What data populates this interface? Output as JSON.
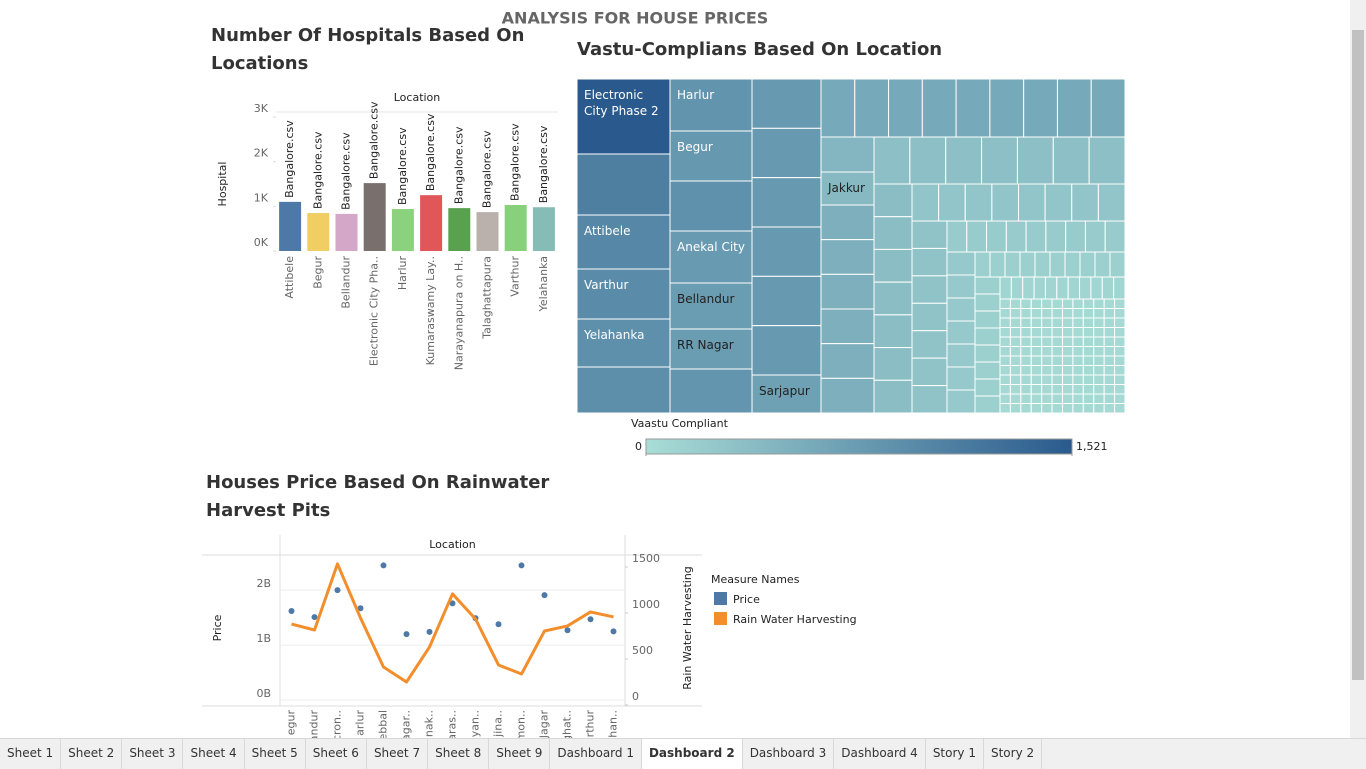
{
  "dashboard_title": "ANALYSIS FOR HOUSE PRICES",
  "chart_data": [
    {
      "type": "bar",
      "title": "Number Of Hospitals Based On Locations",
      "x_label": "Location",
      "y_label": "Hospital",
      "categories": [
        "Attibele",
        "Begur",
        "Bellandur",
        "Electronic City Pha..",
        "Harlur",
        "Kumaraswamy Lay..",
        "Narayanapura on H..",
        "Talaghattapura",
        "Varthur",
        "Yelahanka"
      ],
      "values": [
        1100,
        850,
        830,
        1520,
        940,
        1250,
        960,
        870,
        1030,
        980
      ],
      "bar_labels": [
        "Bangalore.csv",
        "Bangalore.csv",
        "Bangalore.csv",
        "Bangalore.csv",
        "Bangalore.csv",
        "Bangalore.csv",
        "Bangalore.csv",
        "Bangalore.csv",
        "Bangalore.csv",
        "Bangalore.csv"
      ],
      "colors": [
        "#4e79a7",
        "#f1ce63",
        "#d4a6c8",
        "#79706e",
        "#8cd17d",
        "#e15759",
        "#59a14f",
        "#bab0ac",
        "#86d17a",
        "#86bcb6"
      ],
      "ylim": [
        0,
        3000
      ],
      "yticks": [
        {
          "value": 0,
          "label": "0K"
        },
        {
          "value": 1000,
          "label": "1K"
        },
        {
          "value": 2000,
          "label": "2K"
        },
        {
          "value": 3000,
          "label": "3K"
        }
      ]
    },
    {
      "type": "treemap",
      "title": "Vastu-Complians Based On Location",
      "categories": [
        "Electronic City Phase 2",
        "Attibele",
        "Varthur",
        "Yelahanka",
        "Harlur",
        "Begur",
        "Anekal City",
        "Bellandur",
        "RR Nagar",
        "Sarjapur",
        "Jakkur"
      ],
      "values": [
        1521,
        1000,
        950,
        900,
        850,
        800,
        780,
        760,
        740,
        700,
        420
      ],
      "color_label": "Vaastu Compliant",
      "color_range": [
        "#a9ddd6",
        "#2a5a8d"
      ],
      "clim": [
        0,
        1521
      ],
      "cticks": [
        0,
        {
          "value": 1521,
          "label": "1,521"
        }
      ]
    },
    {
      "type": "line",
      "title": "Houses Price Based On Rainwater Harvest Pits",
      "x_label": "Location",
      "y_label": "Price",
      "y2_label": "Rain Water Harvesting",
      "legend_title": "Measure Names",
      "categories": [
        "egur",
        "andur",
        "cron..",
        "arlur",
        "ebbal",
        "agar..",
        "nak..",
        "aras..",
        "yan..",
        "jina..",
        "mon..",
        "Jagar",
        "ghat..",
        "rthur",
        "han.."
      ],
      "series": [
        {
          "name": "Price",
          "color": "#4e79a7",
          "style": "dots",
          "values": [
            1620000000,
            1510000000,
            2000000000,
            1670000000,
            2450000000,
            1200000000,
            1240000000,
            1760000000,
            1490000000,
            1380000000,
            2450000000,
            1910000000,
            1270000000,
            1470000000,
            1250000000
          ]
        },
        {
          "name": "Rain Water Harvesting",
          "color": "#f28e2b",
          "axis": "y2",
          "style": "line",
          "values": [
            880,
            815,
            1533,
            946,
            413,
            250,
            630,
            1207,
            935,
            435,
            337,
            804,
            859,
            1011,
            957
          ]
        }
      ],
      "ylim": [
        0,
        2640000000
      ],
      "yticks": [
        {
          "value": 0,
          "label": "0B"
        },
        {
          "value": 1000000000,
          "label": "1B"
        },
        {
          "value": 2000000000,
          "label": "2B"
        }
      ],
      "y2lim": [
        0,
        1630
      ],
      "y2ticks": [
        0,
        500,
        1000,
        1500
      ],
      "grid": true
    }
  ],
  "tabs": [
    "Sheet 1",
    "Sheet 2",
    "Sheet 3",
    "Sheet 4",
    "Sheet 5",
    "Sheet 6",
    "Sheet 7",
    "Sheet 8",
    "Sheet 9",
    "Dashboard 1",
    "Dashboard 2",
    "Dashboard 3",
    "Dashboard 4",
    "Story 1",
    "Story 2"
  ],
  "active_tab": 10
}
